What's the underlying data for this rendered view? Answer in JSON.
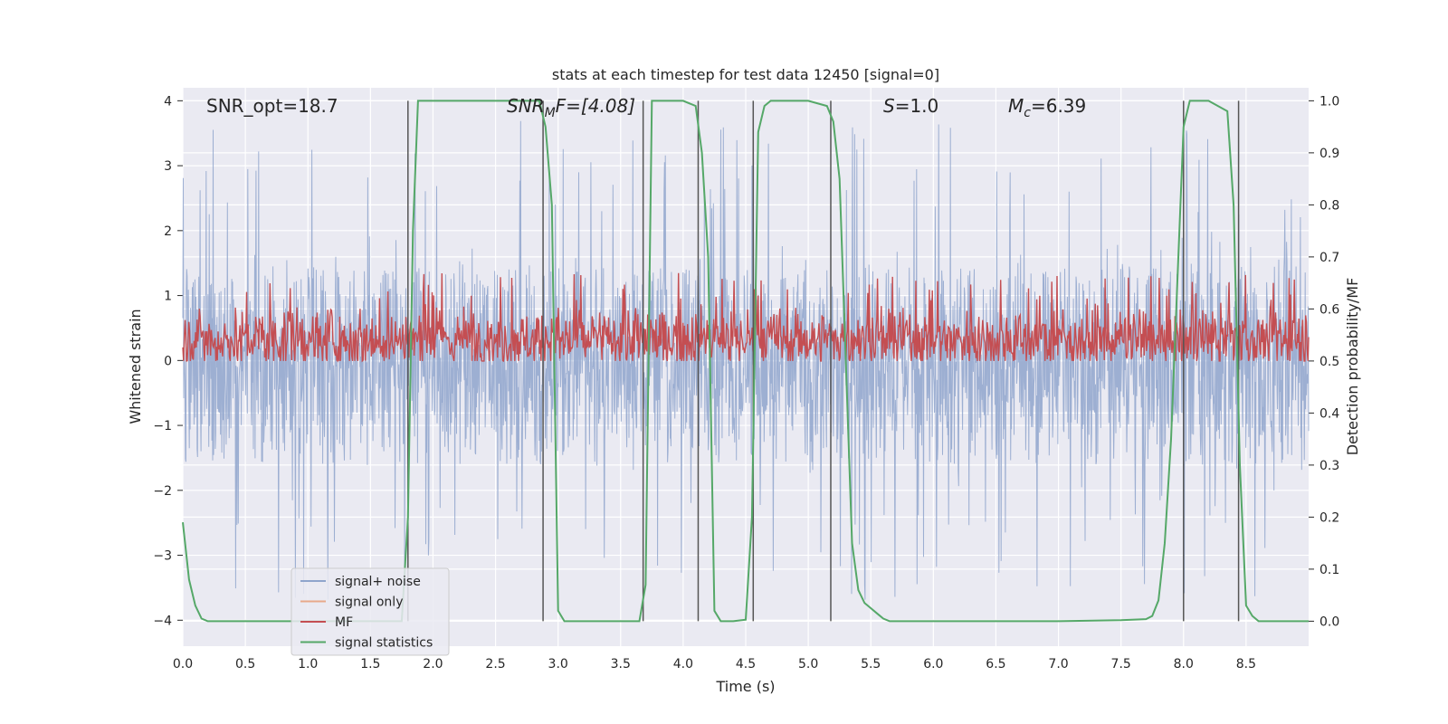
{
  "chart_data": {
    "type": "line",
    "title": "stats at each timestep for test data 12450 [signal=0]",
    "xlabel": "Time (s)",
    "ylabel": "Whitened strain",
    "y2label": "Detection probability/MF",
    "xlim": [
      0.0,
      9.0
    ],
    "ylim": [
      -4.4,
      4.2
    ],
    "y2lim": [
      -0.048,
      1.025
    ],
    "xticks": [
      "0.0",
      "0.5",
      "1.0",
      "1.5",
      "2.0",
      "2.5",
      "3.0",
      "3.5",
      "4.0",
      "4.5",
      "5.0",
      "5.5",
      "6.0",
      "6.5",
      "7.0",
      "7.5",
      "8.0",
      "8.5"
    ],
    "yticks": [
      "−4",
      "−3",
      "−2",
      "−1",
      "0",
      "1",
      "2",
      "3",
      "4"
    ],
    "y2ticks": [
      "0.0",
      "0.1",
      "0.2",
      "0.3",
      "0.4",
      "0.5",
      "0.6",
      "0.7",
      "0.8",
      "0.9",
      "1.0"
    ],
    "annotations": {
      "snr_opt": "SNR_opt=18.7",
      "snr_mf_base": "SNR",
      "snr_mf_sub": "M",
      "snr_mf_rest": "F=[4.08]",
      "s_italic": "S",
      "s_rest": "=1.0",
      "mc_base": "M",
      "mc_sub": "c",
      "mc_rest": "=6.39"
    },
    "legend": {
      "position": "lower-left",
      "entries": [
        {
          "label": "signal+ noise",
          "color": "#8fa5cc"
        },
        {
          "label": "signal only",
          "color": "#e8a98a"
        },
        {
          "label": "MF",
          "color": "#c44e52"
        },
        {
          "label": "signal statistics",
          "color": "#55a868"
        }
      ]
    },
    "series": [
      {
        "name": "signal+ noise",
        "color": "#8fa5cc",
        "envelope_typical": [
          -1.6,
          1.45
        ],
        "range": [
          -3.9,
          3.7
        ]
      },
      {
        "name": "MF",
        "color": "#c44e52",
        "axis": "right",
        "range": [
          0.5,
          0.62
        ]
      },
      {
        "name": "signal statistics",
        "color": "#55a868",
        "axis": "right",
        "x": [
          0.0,
          0.05,
          0.1,
          0.15,
          0.2,
          0.3,
          0.5,
          1.0,
          1.5,
          1.75,
          1.8,
          1.84,
          1.88,
          2.0,
          2.5,
          2.85,
          2.9,
          2.95,
          3.0,
          3.05,
          3.1,
          3.5,
          3.65,
          3.7,
          3.75,
          3.8,
          4.0,
          4.1,
          4.15,
          4.2,
          4.25,
          4.3,
          4.35,
          4.4,
          4.5,
          4.55,
          4.6,
          4.65,
          4.7,
          4.8,
          5.0,
          5.15,
          5.2,
          5.25,
          5.3,
          5.35,
          5.4,
          5.45,
          5.5,
          5.55,
          5.6,
          5.65,
          5.7,
          6.0,
          6.5,
          7.0,
          7.5,
          7.7,
          7.75,
          7.8,
          7.85,
          7.9,
          7.95,
          8.0,
          8.05,
          8.1,
          8.2,
          8.35,
          8.4,
          8.45,
          8.5,
          8.55,
          8.6,
          8.7,
          9.0
        ],
        "y": [
          0.19,
          0.08,
          0.03,
          0.005,
          0.0,
          0.0,
          0.0,
          0.0,
          0.0,
          0.0,
          0.2,
          0.75,
          1.0,
          1.0,
          1.0,
          1.0,
          0.95,
          0.8,
          0.02,
          0.0,
          0.0,
          0.0,
          0.0,
          0.07,
          1.0,
          1.0,
          1.0,
          0.99,
          0.9,
          0.7,
          0.02,
          0.0,
          0.0,
          0.0,
          0.003,
          0.2,
          0.94,
          0.99,
          1.0,
          1.0,
          1.0,
          0.99,
          0.96,
          0.85,
          0.5,
          0.15,
          0.06,
          0.035,
          0.025,
          0.015,
          0.005,
          0.0,
          0.0,
          0.0,
          0.0,
          0.0,
          0.002,
          0.004,
          0.01,
          0.04,
          0.15,
          0.35,
          0.65,
          0.95,
          1.0,
          1.0,
          1.0,
          0.98,
          0.8,
          0.3,
          0.03,
          0.01,
          0.0,
          0.0,
          0.0
        ]
      }
    ],
    "vertical_markers_x": [
      1.8,
      2.88,
      3.68,
      4.12,
      4.56,
      5.18,
      8.0,
      8.44
    ]
  }
}
